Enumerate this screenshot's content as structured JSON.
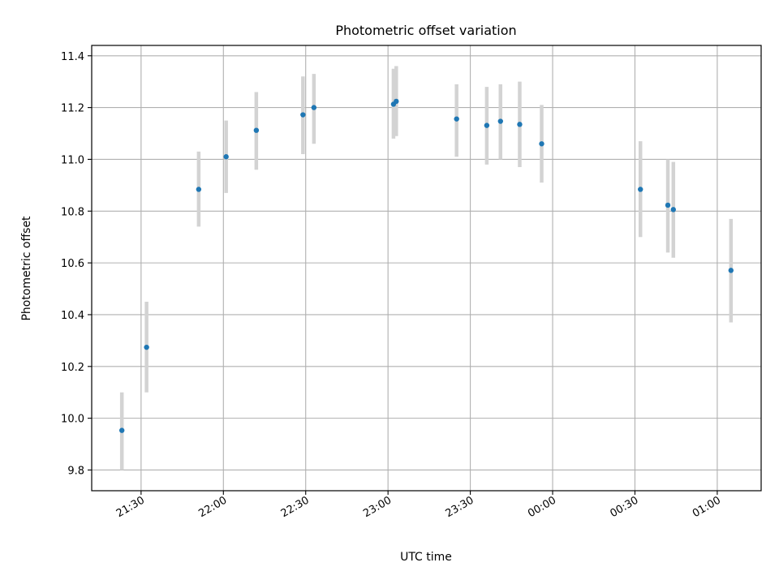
{
  "chart_data": {
    "type": "scatter",
    "title": "Photometric offset variation",
    "xlabel": "UTC time",
    "ylabel": "Photometric offset",
    "x_axis_kind": "time",
    "grid": true,
    "xlim": [
      "21:12",
      "01:16"
    ],
    "ylim": [
      9.72,
      11.44
    ],
    "x_ticks": [
      "21:30",
      "22:00",
      "22:30",
      "23:00",
      "23:30",
      "00:00",
      "00:30",
      "01:00"
    ],
    "y_ticks": [
      "9.8",
      "10.0",
      "10.2",
      "10.4",
      "10.6",
      "10.8",
      "11.0",
      "11.2",
      "11.4"
    ],
    "point_color": "#1f77b4",
    "errorbar_color": "#d3d3d3",
    "series": [
      {
        "points": [
          {
            "t": "21:23",
            "y": 9.953,
            "lo": 9.8,
            "hi": 10.1
          },
          {
            "t": "21:32",
            "y": 10.274,
            "lo": 10.1,
            "hi": 10.45
          },
          {
            "t": "21:51",
            "y": 10.884,
            "lo": 10.74,
            "hi": 11.03
          },
          {
            "t": "22:01",
            "y": 11.01,
            "lo": 10.87,
            "hi": 11.15
          },
          {
            "t": "22:12",
            "y": 11.112,
            "lo": 10.96,
            "hi": 11.26
          },
          {
            "t": "22:29",
            "y": 11.172,
            "lo": 11.02,
            "hi": 11.32
          },
          {
            "t": "22:33",
            "y": 11.2,
            "lo": 11.06,
            "hi": 11.33
          },
          {
            "t": "23:02",
            "y": 11.213,
            "lo": 11.08,
            "hi": 11.35
          },
          {
            "t": "23:03",
            "y": 11.224,
            "lo": 11.09,
            "hi": 11.36
          },
          {
            "t": "23:25",
            "y": 11.156,
            "lo": 11.01,
            "hi": 11.29
          },
          {
            "t": "23:36",
            "y": 11.131,
            "lo": 10.98,
            "hi": 11.28
          },
          {
            "t": "23:41",
            "y": 11.147,
            "lo": 11.0,
            "hi": 11.29
          },
          {
            "t": "23:48",
            "y": 11.135,
            "lo": 10.97,
            "hi": 11.3
          },
          {
            "t": "23:56",
            "y": 11.06,
            "lo": 10.91,
            "hi": 11.21
          },
          {
            "t": "00:32",
            "y": 10.884,
            "lo": 10.7,
            "hi": 11.07
          },
          {
            "t": "00:42",
            "y": 10.823,
            "lo": 10.64,
            "hi": 11.0
          },
          {
            "t": "00:44",
            "y": 10.806,
            "lo": 10.62,
            "hi": 10.99
          },
          {
            "t": "01:05",
            "y": 10.571,
            "lo": 10.37,
            "hi": 10.77
          }
        ]
      }
    ]
  }
}
